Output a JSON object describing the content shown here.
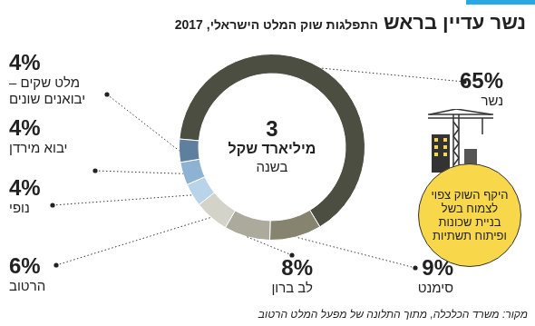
{
  "chart_data": {
    "type": "doughnut",
    "title": "נשר עדיין בראש",
    "subtitle": "התפלגות שוק המלט הישראלי, 2017",
    "categories": [
      "נשר",
      "סימנט",
      "לב ברון",
      "הרטוב",
      "נופי",
      "יבוא מירדן",
      "מלט שקים – יבואנים שונים"
    ],
    "values": [
      65,
      9,
      8,
      6,
      4,
      4,
      4
    ],
    "value_labels": [
      "65%",
      "9%",
      "8%",
      "6%",
      "4%",
      "4%",
      "4%"
    ],
    "colors": [
      "#4d4e42",
      "#86846f",
      "#abaa9c",
      "#d3d3ca",
      "#b9d4e9",
      "#8db2d2",
      "#5f7f9e"
    ],
    "data_labels": true,
    "center_text": [
      "3",
      "מיליארד שקל",
      "בשנה"
    ],
    "annotation": "היקף השוק צפוי לצמוח בשל בניית שכונות ופיתוח תשתיות",
    "source": "מקור: משרד הכלכלה, מתוך התלונה של מפעל המלט הרטוב"
  }
}
